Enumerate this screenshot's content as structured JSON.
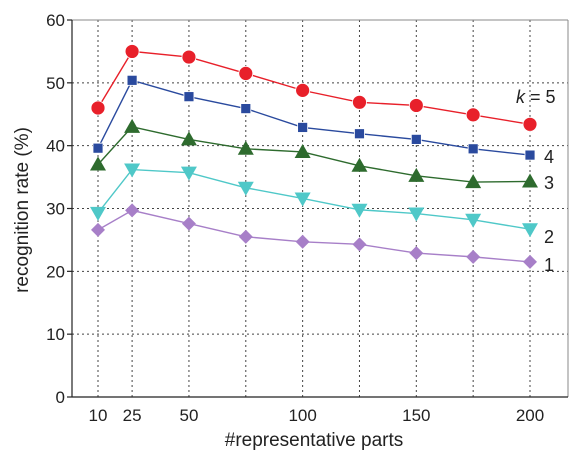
{
  "chart_data": {
    "type": "line",
    "title": "",
    "xlabel": "#representative parts",
    "ylabel": "recognition rate (%)",
    "x": [
      10,
      25,
      50,
      75,
      100,
      125,
      150,
      175,
      200
    ],
    "x_tick_labels": [
      "10",
      "25",
      "50",
      "100",
      "150",
      "200"
    ],
    "ylim": [
      0,
      60
    ],
    "y_ticks": [
      0,
      10,
      20,
      30,
      40,
      50,
      60
    ],
    "grid": "dashed",
    "legend": "inline labels at right end of lines",
    "series": [
      {
        "name": "k = 5",
        "label_prefix": "k",
        "label_suffix": " = 5",
        "color": "#e8202a",
        "marker": "circle",
        "values": [
          46.0,
          55.0,
          54.1,
          51.5,
          48.8,
          46.9,
          46.4,
          44.9,
          43.4
        ]
      },
      {
        "name": "4",
        "color": "#2a4a9e",
        "marker": "square",
        "values": [
          39.6,
          50.4,
          47.8,
          45.9,
          42.9,
          41.9,
          41.0,
          39.5,
          38.5
        ]
      },
      {
        "name": "3",
        "color": "#2e6b2e",
        "marker": "triangle-up",
        "values": [
          37.0,
          43.0,
          41.0,
          39.5,
          39.0,
          36.8,
          35.2,
          34.2,
          34.3
        ]
      },
      {
        "name": "2",
        "color": "#4fc8c8",
        "marker": "triangle-down",
        "values": [
          29.3,
          36.2,
          35.7,
          33.3,
          31.6,
          29.8,
          29.2,
          28.2,
          26.7
        ]
      },
      {
        "name": "1",
        "color": "#a77fc8",
        "marker": "diamond",
        "values": [
          26.6,
          29.7,
          27.6,
          25.5,
          24.7,
          24.3,
          22.9,
          22.3,
          21.5
        ]
      }
    ]
  }
}
